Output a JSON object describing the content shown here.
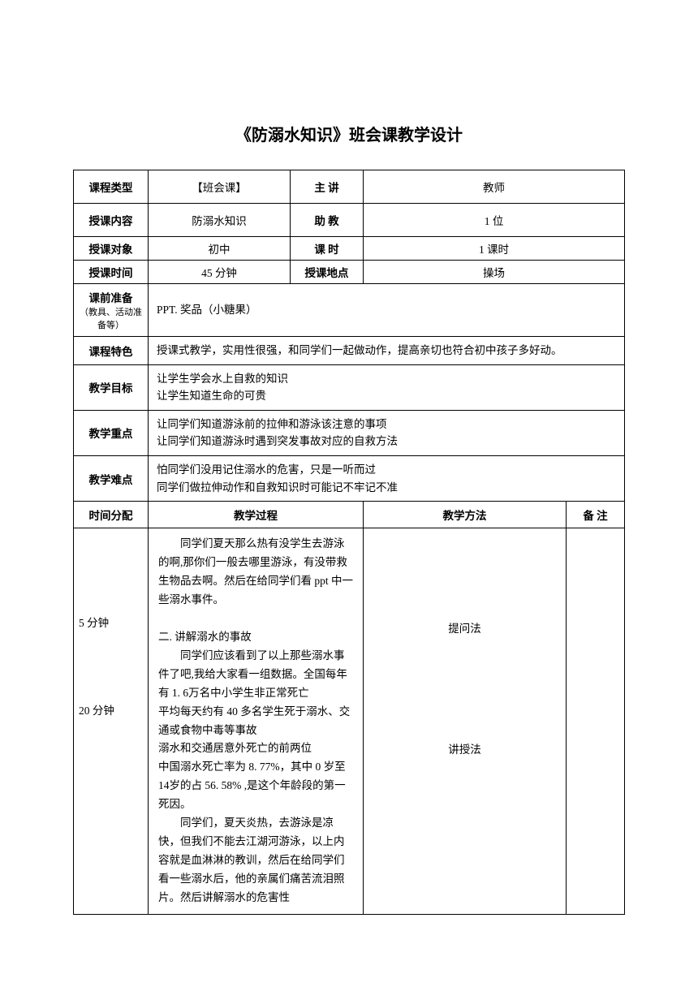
{
  "title": "《防溺水知识》班会课教学设计",
  "table": {
    "header_rows": [
      {
        "label": "课程类型",
        "col2": "【班会课】",
        "col3": "主  讲",
        "col4": "教师",
        "tall": true
      },
      {
        "label": "授课内容",
        "col2": "防溺水知识",
        "col3": "助  教",
        "col4": "1 位",
        "tall": true
      },
      {
        "label": "授课对象",
        "col2": "初中",
        "col3": "课  时",
        "col4": "1 课时",
        "tall": false
      },
      {
        "label": "授课时间",
        "col2": "45 分钟",
        "col3": "授课地点",
        "col4": "操场",
        "tall": false
      }
    ],
    "full_rows": [
      {
        "label": "课前准备",
        "sublabel": "（教具、活动准备等）",
        "content": "PPT. 奖品（小糖果）"
      },
      {
        "label": "课程特色",
        "content": "授课式教学，实用性很强，和同学们一起做动作，提高亲切也符合初中孩子多好动。"
      },
      {
        "label": "教学目标",
        "content": "让学生学会水上自救的知识\n让学生知道生命的可贵"
      },
      {
        "label": "教学重点",
        "content": "让同学们知道游泳前的拉伸和游泳该注意的事项\n让同学们知道游泳时遇到突发事故对应的自救方法"
      },
      {
        "label": "教学难点",
        "content": "怕同学们没用记住溺水的危害，只是一听而过\n同学们做拉伸动作和自救知识时可能记不牢记不准"
      }
    ],
    "process_header": {
      "col1": "时间分配",
      "col2": "教学过程",
      "col3": "教学方法",
      "col4": "备  注"
    },
    "process_row": {
      "time1": "5 分钟",
      "time2": "20 分钟",
      "para1": "　　同学们夏天那么热有没学生去游泳的啊,那你们一般去哪里游泳，有没带救生物品去啊。然后在给同学们看 ppt 中一些溺水事件。",
      "section2_title": "二. 讲解溺水的事故",
      "para2a": "　　同学们应该看到了以上那些溺水事件了吧,我给大家看一组数据。全国每年有 1. 6万名中小学生非正常死亡",
      "para2b": "平均每天约有 40 多名学生死于溺水、交通或食物中毒等事故",
      "para2c": "溺水和交通居意外死亡的前两位",
      "para2d": "中国溺水死亡率为 8. 77%，其中 0 岁至 14岁的占 56. 58% ,是这个年龄段的第一死因。",
      "para2e": "　　同学们，夏天炎热，去游泳是凉快，但我们不能去江湖河游泳，以上内容就是血淋淋的教训，然后在给同学们看一些溺水后，他的亲属们痛苦流泪照片。然后讲解溺水的危害性",
      "method1": "提问法",
      "method2": "讲授法"
    }
  }
}
